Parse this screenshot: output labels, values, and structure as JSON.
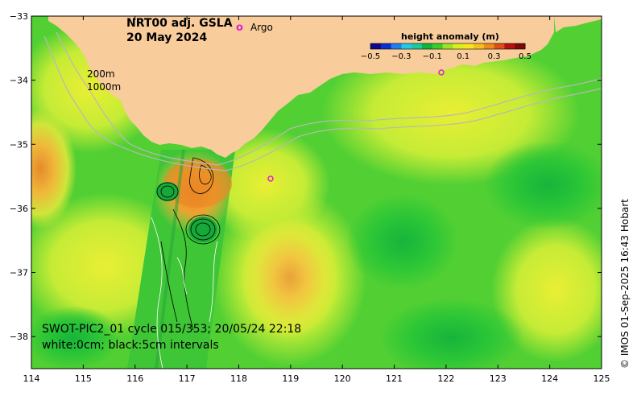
{
  "title": {
    "line1": "NRT00 adj. GSLA",
    "line2": "20 May 2024"
  },
  "legend": {
    "argo_symbol": "o",
    "argo_label": "Argo"
  },
  "isobaths": {
    "line1": "200m",
    "line2": "1000m"
  },
  "colorbar": {
    "title": "height anomaly (m)",
    "ticks": [
      "−0.5",
      "−0.3",
      "−0.1",
      "0.1",
      "0.3",
      "0.5"
    ],
    "colors": [
      "#0a0a8a",
      "#0b2fd0",
      "#1e7ff0",
      "#23c7e8",
      "#19c9a0",
      "#11b43a",
      "#37d02a",
      "#9ee32a",
      "#d7ef1f",
      "#f5e620",
      "#f5c01f",
      "#ef8a1d",
      "#dd4f17",
      "#b5110f",
      "#7a0a0a"
    ]
  },
  "swot": {
    "line1": "SWOT-PIC2_01 cycle 015/353; 20/05/24 22:18",
    "line2": "white:0cm; black:5cm intervals"
  },
  "credit": "© IMOS 01-Sep-2025 16:43 Hobart",
  "axes": {
    "x_ticks": [
      "114",
      "115",
      "116",
      "117",
      "118",
      "119",
      "120",
      "121",
      "122",
      "123",
      "124",
      "125"
    ],
    "y_ticks": [
      "−33",
      "−34",
      "−35",
      "−36",
      "−37",
      "−38"
    ],
    "x_range": [
      114,
      125
    ],
    "y_range": [
      -38.5,
      -33
    ],
    "x_unit": "longitude",
    "y_unit": "latitude"
  },
  "colors": {
    "land": "#f8cc9b",
    "ocean_base": "#4fcf33",
    "argo": "#e020d0"
  }
}
